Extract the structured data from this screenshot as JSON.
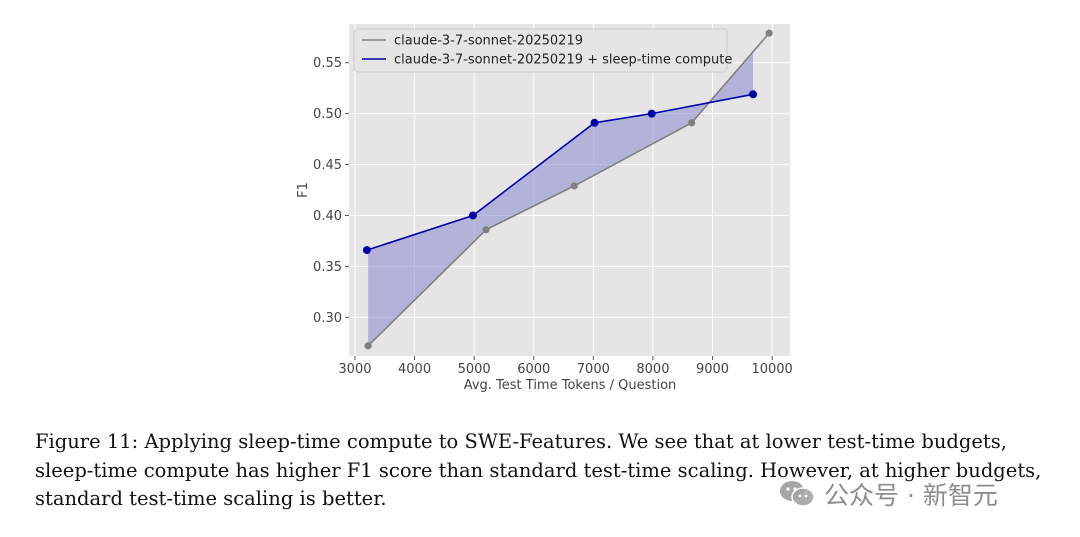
{
  "chart_data": {
    "type": "line",
    "xlabel": "Avg. Test Time Tokens / Question",
    "ylabel": "F1",
    "xlim": [
      2900,
      10300
    ],
    "ylim": [
      0.262,
      0.588
    ],
    "x_ticks": [
      3000,
      4000,
      5000,
      6000,
      7000,
      8000,
      9000,
      10000
    ],
    "y_ticks": [
      0.3,
      0.35,
      0.4,
      0.45,
      0.5,
      0.55
    ],
    "x_tick_labels": [
      "3000",
      "4000",
      "5000",
      "6000",
      "7000",
      "8000",
      "9000",
      "10000"
    ],
    "y_tick_labels": [
      "0.30",
      "0.35",
      "0.40",
      "0.45",
      "0.50",
      "0.55"
    ],
    "grid": true,
    "legend_position": "top-left",
    "fill_between_series": true,
    "series": [
      {
        "name": "claude-3-7-sonnet-20250219",
        "color": "#808080",
        "x": [
          3220,
          5200,
          6680,
          8650,
          9950
        ],
        "y": [
          0.272,
          0.386,
          0.429,
          0.491,
          0.579
        ]
      },
      {
        "name": "claude-3-7-sonnet-20250219 + sleep-time compute",
        "color": "#0000a8",
        "x": [
          3200,
          4980,
          7020,
          7980,
          9680
        ],
        "y": [
          0.366,
          0.4,
          0.491,
          0.5,
          0.519
        ]
      }
    ],
    "fill_color": "#8a8ad0"
  },
  "caption": {
    "text": "Figure 11: Applying sleep-time compute to SWE-Features. We see that at lower test-time budgets, sleep-time compute has higher F1 score than standard test-time scaling. However, at higher budgets, standard test-time scaling is better."
  },
  "watermark": {
    "text": "公众号 · 新智元",
    "icon": "wechat-icon"
  }
}
